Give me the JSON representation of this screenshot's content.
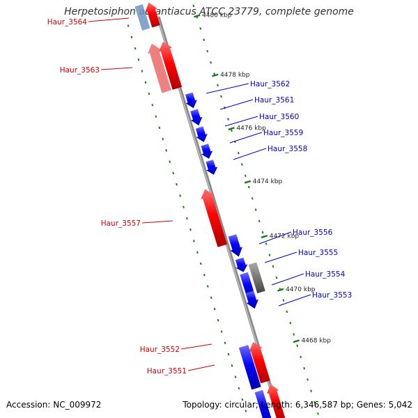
{
  "title": "Herpetosiphon aurantiacus ATCC 23779, complete genome",
  "footer": {
    "accession": "Accession: NC_009972",
    "summary": "Topology: circular; Length: 6,346,587 bp; Genes: 5,042"
  },
  "colors": {
    "forward_gene": "#ff0000",
    "forward_gene_light": "#f08080",
    "reverse_gene": "#0000ff",
    "reverse_gene_light": "#6f97c4",
    "other_gene": "#777777",
    "backbone": "#8a8a8a",
    "tick": "#1a7f1a",
    "forward_label": "#cc0000",
    "reverse_label": "#0000cc"
  },
  "scale_labels": [
    "4480 kbp",
    "4478 kbp",
    "4476 kbp",
    "4474 kbp",
    "4472 kbp",
    "4470 kbp",
    "4468 kbp"
  ],
  "gene_labels": {
    "forward": [
      "Haur_3564",
      "Haur_3563",
      "Haur_3557",
      "Haur_3552",
      "Haur_3551"
    ],
    "reverse": [
      "Haur_3562",
      "Haur_3561",
      "Haur_3560",
      "Haur_3559",
      "Haur_3558",
      "Haur_3556",
      "Haur_3555",
      "Haur_3554",
      "Haur_3553"
    ]
  }
}
